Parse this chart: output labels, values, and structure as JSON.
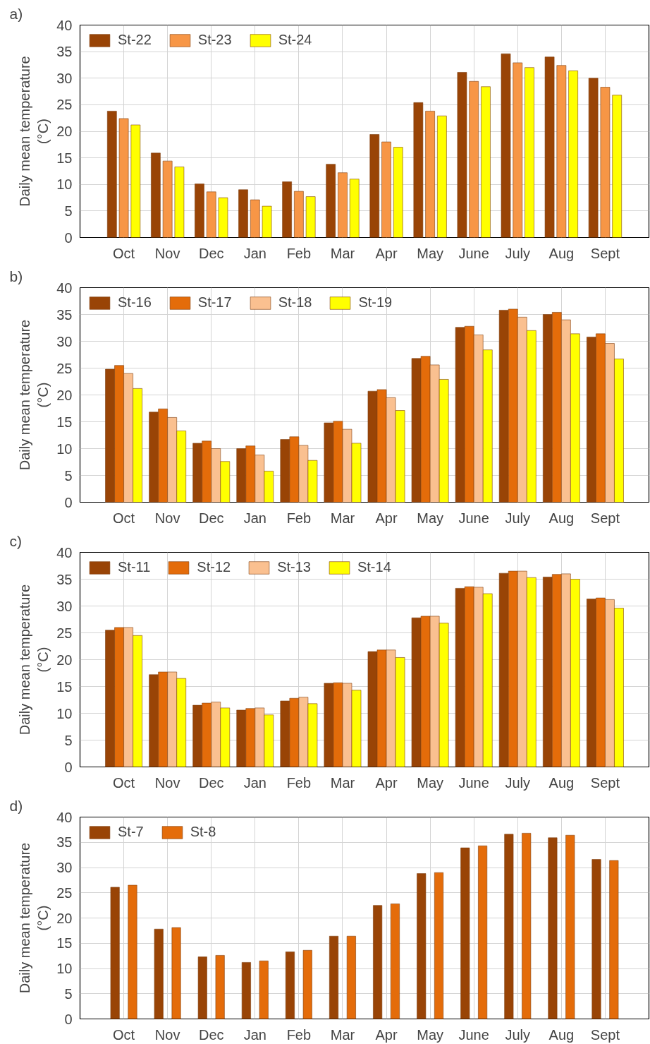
{
  "chart_data": [
    {
      "type": "bar",
      "title": "a)",
      "ylabel": "Daily mean temperature\n(°C)",
      "categories": [
        "Oct",
        "Nov",
        "Dec",
        "Jan",
        "Feb",
        "Mar",
        "Apr",
        "May",
        "June",
        "July",
        "Aug",
        "Sept"
      ],
      "ylim": [
        0,
        40
      ],
      "yticks": [
        0,
        5,
        10,
        15,
        20,
        25,
        30,
        35,
        40
      ],
      "grid": true,
      "legend": "top left",
      "series": [
        {
          "name": "St-22",
          "color": "#994406",
          "values": [
            23.8,
            15.9,
            10.1,
            9.0,
            10.5,
            13.8,
            19.4,
            25.4,
            31.1,
            34.6,
            34.0,
            30.0
          ]
        },
        {
          "name": "St-23",
          "color": "#f79646",
          "values": [
            22.4,
            14.4,
            8.6,
            7.1,
            8.7,
            12.2,
            18.0,
            23.8,
            29.4,
            32.9,
            32.4,
            28.3
          ]
        },
        {
          "name": "St-24",
          "color": "#ffff00",
          "values": [
            21.2,
            13.3,
            7.5,
            5.9,
            7.7,
            11.0,
            17.0,
            22.9,
            28.4,
            32.0,
            31.4,
            26.8
          ]
        }
      ]
    },
    {
      "type": "bar",
      "title": "b)",
      "ylabel": "Daily mean temperature\n(°C)",
      "categories": [
        "Oct",
        "Nov",
        "Dec",
        "Jan",
        "Feb",
        "Mar",
        "Apr",
        "May",
        "June",
        "July",
        "Aug",
        "Sept"
      ],
      "ylim": [
        0,
        40
      ],
      "yticks": [
        0,
        5,
        10,
        15,
        20,
        25,
        30,
        35,
        40
      ],
      "grid": true,
      "legend": "top left",
      "series": [
        {
          "name": "St-16",
          "color": "#994406",
          "values": [
            24.8,
            16.8,
            11.0,
            10.0,
            11.7,
            14.8,
            20.7,
            26.8,
            32.6,
            35.8,
            35.0,
            30.8
          ]
        },
        {
          "name": "St-17",
          "color": "#e46c0a",
          "values": [
            25.5,
            17.4,
            11.4,
            10.5,
            12.2,
            15.1,
            21.0,
            27.2,
            32.8,
            36.0,
            35.4,
            31.4
          ]
        },
        {
          "name": "St-18",
          "color": "#fac090",
          "values": [
            24.0,
            15.8,
            10.0,
            8.8,
            10.6,
            13.6,
            19.5,
            25.6,
            31.2,
            34.5,
            34.0,
            29.6
          ]
        },
        {
          "name": "St-19",
          "color": "#ffff00",
          "values": [
            21.2,
            13.3,
            7.6,
            5.8,
            7.8,
            11.0,
            17.1,
            22.9,
            28.4,
            32.0,
            31.4,
            26.7
          ]
        }
      ]
    },
    {
      "type": "bar",
      "title": "c)",
      "ylabel": "Daily mean temperature\n(°C)",
      "categories": [
        "Oct",
        "Nov",
        "Dec",
        "Jan",
        "Feb",
        "Mar",
        "Apr",
        "May",
        "June",
        "July",
        "Aug",
        "Sept"
      ],
      "ylim": [
        0,
        40
      ],
      "yticks": [
        0,
        5,
        10,
        15,
        20,
        25,
        30,
        35,
        40
      ],
      "grid": true,
      "legend": "top left",
      "series": [
        {
          "name": "St-11",
          "color": "#994406",
          "values": [
            25.5,
            17.2,
            11.5,
            10.6,
            12.3,
            15.6,
            21.5,
            27.8,
            33.3,
            36.1,
            35.4,
            31.3
          ]
        },
        {
          "name": "St-12",
          "color": "#e46c0a",
          "values": [
            26.0,
            17.7,
            11.9,
            10.9,
            12.8,
            15.7,
            21.8,
            28.1,
            33.6,
            36.5,
            35.9,
            31.5
          ]
        },
        {
          "name": "St-13",
          "color": "#fac090",
          "values": [
            26.0,
            17.7,
            12.1,
            11.0,
            13.0,
            15.6,
            21.8,
            28.1,
            33.5,
            36.5,
            36.0,
            31.2
          ]
        },
        {
          "name": "St-14",
          "color": "#ffff00",
          "values": [
            24.5,
            16.5,
            11.0,
            9.7,
            11.8,
            14.3,
            20.4,
            26.8,
            32.3,
            35.3,
            35.0,
            29.6
          ]
        }
      ]
    },
    {
      "type": "bar",
      "title": "d)",
      "ylabel": "Daily mean temperature\n(°C)",
      "categories": [
        "Oct",
        "Nov",
        "Dec",
        "Jan",
        "Feb",
        "Mar",
        "Apr",
        "May",
        "June",
        "July",
        "Aug",
        "Sept"
      ],
      "ylim": [
        0,
        40
      ],
      "yticks": [
        0,
        5,
        10,
        15,
        20,
        25,
        30,
        35,
        40
      ],
      "grid": true,
      "legend": "top left",
      "series": [
        {
          "name": "St-7",
          "color": "#994406",
          "values": [
            26.1,
            17.8,
            12.3,
            11.2,
            13.3,
            16.4,
            22.5,
            28.8,
            33.9,
            36.6,
            35.9,
            31.6
          ]
        },
        {
          "name": "St-8",
          "color": "#e46c0a",
          "values": [
            26.5,
            18.1,
            12.6,
            11.5,
            13.6,
            16.4,
            22.8,
            29.0,
            34.3,
            36.8,
            36.4,
            31.4
          ]
        }
      ]
    }
  ]
}
